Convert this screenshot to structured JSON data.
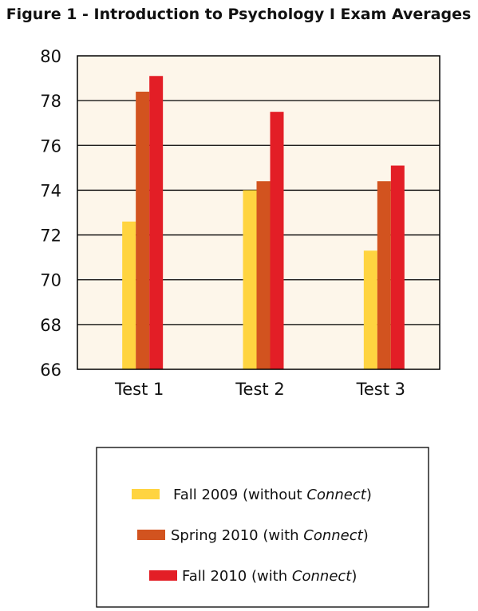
{
  "chart_data": {
    "type": "bar",
    "title": "Figure 1 - Introduction to Psychology I Exam Averages",
    "categories": [
      "Test 1",
      "Test 2",
      "Test 3"
    ],
    "series": [
      {
        "name": "Fall 2009 (without Connect)",
        "name_plain": "Fall 2009 (without ",
        "name_italic": "Connect",
        "name_suffix": ")",
        "color": "#FFD440",
        "values": [
          72.6,
          74.0,
          71.3
        ]
      },
      {
        "name": "Spring 2010 (with Connect)",
        "name_plain": "Spring 2010 (with ",
        "name_italic": "Connect",
        "name_suffix": ")",
        "color": "#D2531F",
        "values": [
          78.4,
          74.4,
          74.4
        ]
      },
      {
        "name": "Fall 2010 (with Connect)",
        "name_plain": "Fall 2010 (with ",
        "name_italic": "Connect",
        "name_suffix": ")",
        "color": "#E31E26",
        "values": [
          79.1,
          77.5,
          75.1
        ]
      }
    ],
    "yticks": [
      "66",
      "68",
      "70",
      "72",
      "74",
      "76",
      "78",
      "80"
    ],
    "ylim": [
      66,
      80
    ],
    "grid": true,
    "legend_position": "bottom",
    "plot_background": "#FDF6EA"
  }
}
